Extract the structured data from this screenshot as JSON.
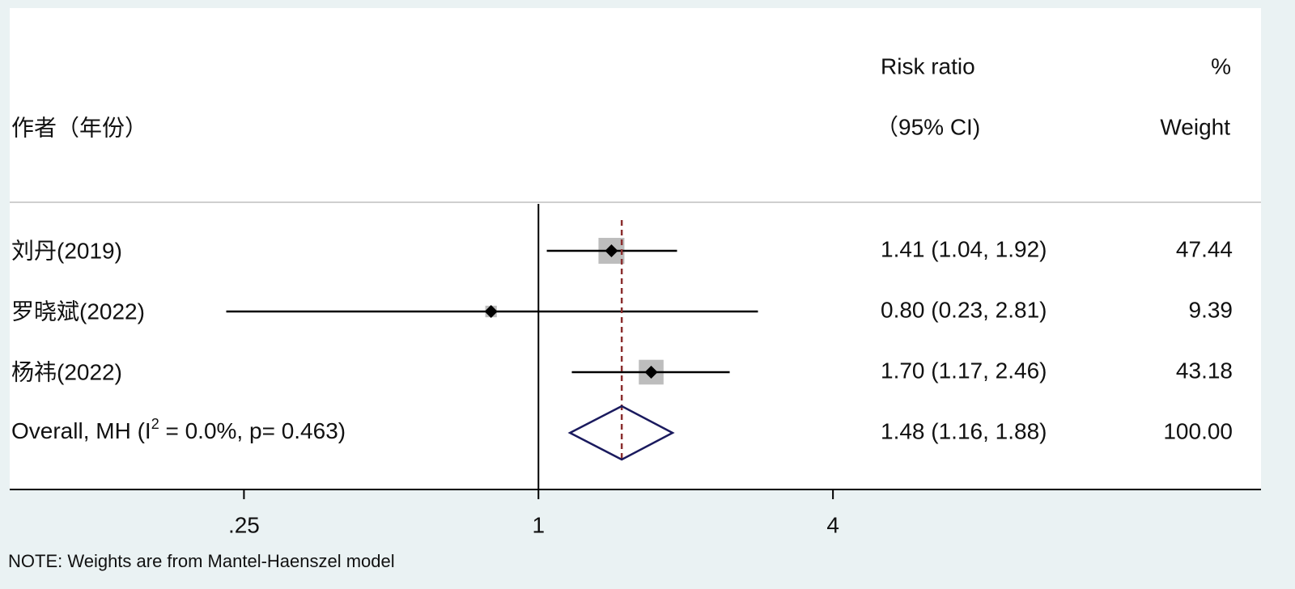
{
  "chart_data": {
    "type": "forest",
    "headers": {
      "study": "作者（年份）",
      "effect_top": "Risk ratio",
      "effect_bottom": "（95% CI)",
      "weight_top": "%",
      "weight_bottom": "Weight"
    },
    "studies": [
      {
        "name": "刘丹(2019)",
        "rr": 1.41,
        "ci_low": 1.04,
        "ci_high": 1.92,
        "label": "1.41 (1.04, 1.92)",
        "weight": 47.44
      },
      {
        "name": "罗晓斌(2022)",
        "rr": 0.8,
        "ci_low": 0.23,
        "ci_high": 2.81,
        "label": "0.80 (0.23, 2.81)",
        "weight": 9.39
      },
      {
        "name": "杨祎(2022)",
        "rr": 1.7,
        "ci_low": 1.17,
        "ci_high": 2.46,
        "label": "1.70 (1.17, 2.46)",
        "weight": 43.18
      }
    ],
    "overall": {
      "name_parts": [
        "Overall, MH (I",
        "2",
        " = 0.0%, p= 0.463)"
      ],
      "rr": 1.48,
      "ci_low": 1.16,
      "ci_high": 1.88,
      "label": "1.48 (1.16, 1.88)",
      "weight": 100.0,
      "weight_label": "100.00"
    },
    "log_x": true,
    "xlim": [
      0.083,
      30
    ],
    "xticks": [
      {
        "value": 0.25,
        "label": ".25"
      },
      1,
      4
    ],
    "null_value": 1,
    "box_color": "#bdbdbd",
    "diamond_color": "#1a1a5e",
    "dash_color": "#8b2f2f",
    "note": "NOTE: Weights are from Mantel-Haenszel model"
  }
}
